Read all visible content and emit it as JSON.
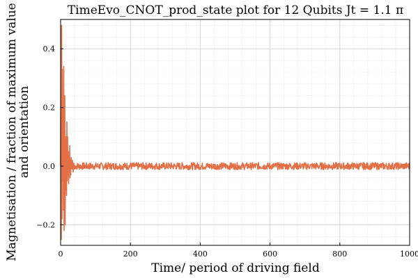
{
  "chart_data": {
    "type": "line",
    "title": "TimeEvo_CNOT_prod_state plot for 12 Qubits Jt = 1.1 π",
    "xlabel": "Time/ period of driving field",
    "ylabel_lines": [
      "Magnetisation / fraction of maximum value",
      "and orientation"
    ],
    "xlim": [
      0,
      1000
    ],
    "ylim": [
      -0.27,
      0.5
    ],
    "x_ticks": [
      0,
      200,
      400,
      600,
      800,
      1000
    ],
    "y_ticks": [
      -0.2,
      0.0,
      0.2,
      0.4
    ],
    "x_tick_labels": [
      "0",
      "200",
      "400",
      "600",
      "800",
      "1000"
    ],
    "y_tick_labels": [
      "−0.2",
      "0.0",
      "0.2",
      "0.4"
    ],
    "grid": true,
    "legend": "none",
    "series": [
      {
        "color": "#e26f46",
        "initial_points": [
          [
            0,
            0.0
          ],
          [
            1,
            0.47
          ],
          [
            2,
            -0.25
          ],
          [
            3,
            0.48
          ],
          [
            4,
            -0.18
          ],
          [
            5,
            0.33
          ],
          [
            6,
            -0.05
          ],
          [
            7,
            0.2
          ],
          [
            8,
            -0.15
          ],
          [
            9,
            0.34
          ],
          [
            10,
            -0.22
          ],
          [
            11,
            0.05
          ],
          [
            12,
            0.24
          ],
          [
            13,
            -0.2
          ],
          [
            14,
            0.1
          ],
          [
            15,
            -0.08
          ],
          [
            16,
            0.1
          ],
          [
            17,
            -0.1
          ],
          [
            18,
            0.15
          ],
          [
            19,
            -0.05
          ],
          [
            20,
            0.1
          ],
          [
            21,
            -0.03
          ],
          [
            22,
            0.05
          ],
          [
            23,
            -0.06
          ],
          [
            24,
            0.03
          ],
          [
            25,
            -0.02
          ],
          [
            26,
            0.07
          ],
          [
            27,
            -0.04
          ],
          [
            28,
            0.02
          ],
          [
            29,
            -0.03
          ],
          [
            30,
            0.03
          ],
          [
            32,
            -0.01
          ],
          [
            34,
            0.02
          ],
          [
            36,
            -0.02
          ],
          [
            38,
            0.01
          ],
          [
            40,
            -0.01
          ]
        ],
        "steady_amplitude": 0.012,
        "x_end": 1000
      }
    ]
  }
}
